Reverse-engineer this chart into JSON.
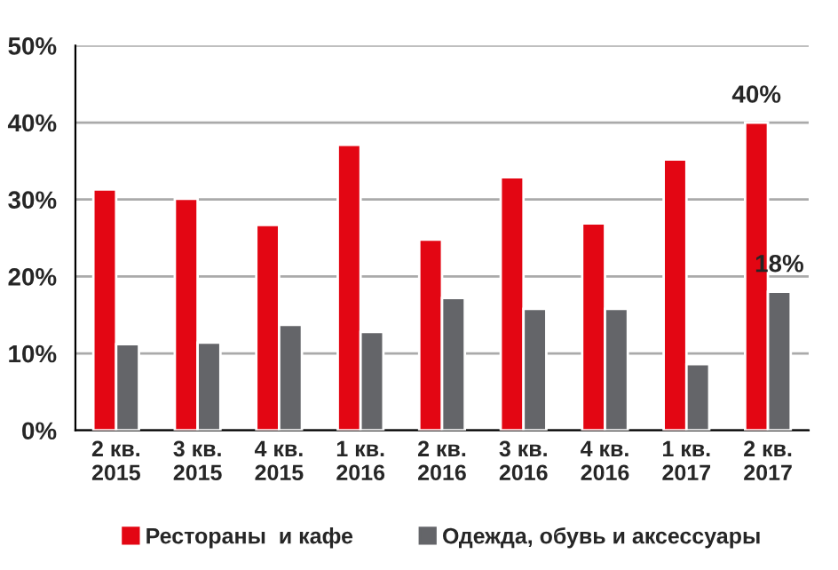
{
  "chart_data": {
    "type": "bar",
    "categories": [
      "2 кв.\n2015",
      "3 кв.\n2015",
      "4 кв.\n2015",
      "1 кв.\n2016",
      "2 кв.\n2016",
      "3 кв.\n2016",
      "4 кв.\n2016",
      "1 кв.\n2017",
      "2 кв.\n2017"
    ],
    "series": [
      {
        "name": "Рестораны  и кафе",
        "color": "#e30613",
        "values": [
          31.3,
          30.1,
          26.7,
          37.1,
          24.8,
          32.9,
          26.9,
          35.2,
          40
        ],
        "value_labels": [
          null,
          null,
          null,
          null,
          null,
          null,
          null,
          null,
          "40%"
        ]
      },
      {
        "name": "Одежда, обувь и аксессуары",
        "color": "#646569",
        "values": [
          11.2,
          11.4,
          13.7,
          12.8,
          17.2,
          15.8,
          15.8,
          8.6,
          18
        ],
        "value_labels": [
          null,
          null,
          null,
          null,
          null,
          null,
          null,
          null,
          "18%"
        ]
      }
    ],
    "ylim": [
      0,
      50
    ],
    "yticks": [
      {
        "value": 0,
        "label": "0%"
      },
      {
        "value": 10,
        "label": "10%"
      },
      {
        "value": 20,
        "label": "20%"
      },
      {
        "value": 30,
        "label": "30%"
      },
      {
        "value": 40,
        "label": "40%"
      },
      {
        "value": 50,
        "label": "50%"
      }
    ],
    "grid": "y",
    "legend": "bottom"
  }
}
